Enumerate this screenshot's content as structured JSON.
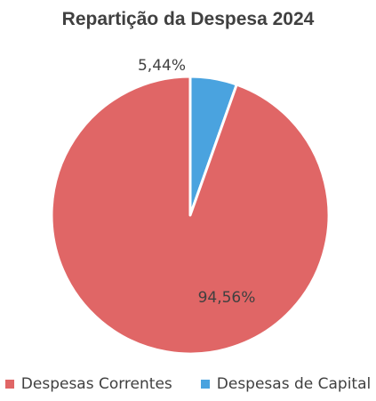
{
  "chart_data": {
    "type": "pie",
    "title": "Repartição da Despesa 2024",
    "categories": [
      "Despesas Correntes",
      "Despesas de Capital"
    ],
    "values": [
      94.56,
      5.44
    ],
    "data_labels": [
      "94,56%",
      "5,44%"
    ],
    "colors": [
      "#e06666",
      "#4aa3df"
    ],
    "legend_position": "bottom"
  }
}
